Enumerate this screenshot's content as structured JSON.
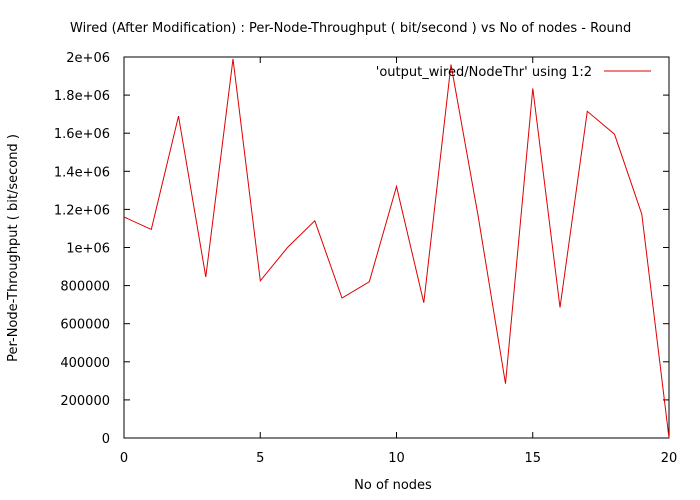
{
  "chart_data": {
    "type": "line",
    "title": "Wired (After Modification) : Per-Node-Throughput ( bit/second ) vs No of nodes - Round",
    "xlabel": "No of nodes",
    "ylabel": "Per-Node-Throughput ( bit/second )",
    "xlim": [
      0,
      20
    ],
    "ylim": [
      0,
      2000000
    ],
    "x_ticks": [
      0,
      5,
      10,
      15,
      20
    ],
    "x_tick_labels": [
      "0",
      "5",
      "10",
      "15",
      "20"
    ],
    "y_ticks": [
      0,
      200000,
      400000,
      600000,
      800000,
      1000000,
      1200000,
      1400000,
      1600000,
      1800000,
      2000000
    ],
    "y_tick_labels": [
      "0",
      "200000",
      "400000",
      "600000",
      "800000",
      "1e+06",
      "1.2e+06",
      "1.4e+06",
      "1.6e+06",
      "1.8e+06",
      "2e+06"
    ],
    "grid": false,
    "legend_position": "top-right",
    "series": [
      {
        "name": "'output_wired/NodeThr' using 1:2",
        "color": "#e00000",
        "x": [
          0,
          1,
          2,
          3,
          4,
          5,
          6,
          7,
          8,
          9,
          10,
          11,
          12,
          13,
          14,
          15,
          16,
          17,
          18,
          19,
          20
        ],
        "y": [
          1160000,
          1095000,
          1690000,
          845000,
          1990000,
          825000,
          1000000,
          1140000,
          735000,
          820000,
          1320000,
          710000,
          1960000,
          1160000,
          285000,
          1835000,
          685000,
          1715000,
          1595000,
          1175000,
          0
        ]
      }
    ]
  }
}
